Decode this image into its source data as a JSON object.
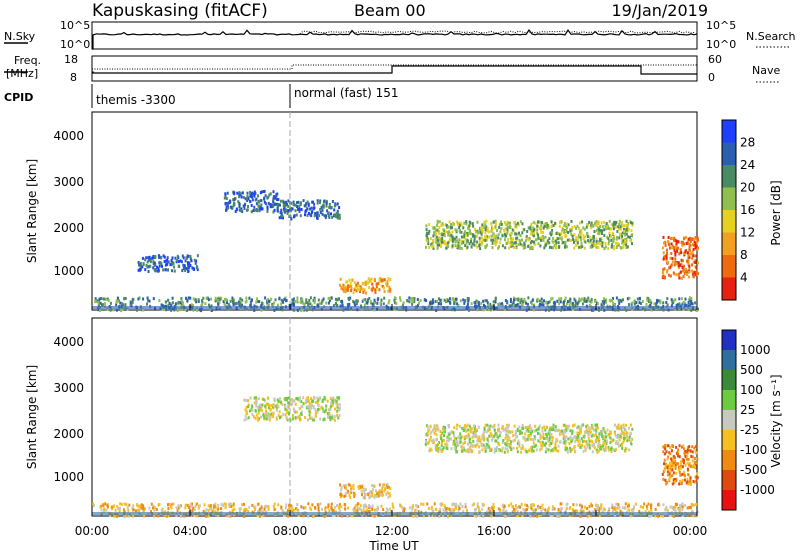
{
  "header": {
    "station": "Kapuskasing (fitACF)",
    "beam": "Beam 00",
    "date": "19/Jan/2019"
  },
  "status_panels": {
    "nsky_label": "N.Sky",
    "nsky_ticks": [
      "10^5",
      "10^0"
    ],
    "nsearch_label": "N.Search",
    "freq_label_line1": "Freq.",
    "freq_label_line2": "[MHz]",
    "freq_ticks": [
      "18",
      "8"
    ],
    "nave_label": "Nave",
    "nave_ticks": [
      "60",
      "0"
    ],
    "cpid_label": "CPID",
    "cpid_modes": [
      "themis -3300",
      "normal (fast) 151"
    ]
  },
  "chart_data": [
    {
      "type": "heatmap",
      "name": "power",
      "ylabel": "Slant Range [km]",
      "yticks": [
        "4000",
        "3000",
        "2000",
        "1000"
      ],
      "ylim": [
        180,
        4500
      ],
      "xlim": [
        0,
        24
      ],
      "colorbar": {
        "label": "Power [dB]",
        "ticks": [
          "28",
          "24",
          "20",
          "16",
          "12",
          "8",
          "4"
        ],
        "colors": [
          "#1f3fff",
          "#2a5fb0",
          "#4a8a60",
          "#8fbf4f",
          "#e8d020",
          "#f2a020",
          "#f06a10",
          "#e82010"
        ]
      },
      "echo_regions": [
        {
          "t_start": 5.2,
          "t_end": 7.4,
          "r_min": 2350,
          "r_max": 2800,
          "level": 1
        },
        {
          "t_start": 7.4,
          "t_end": 9.8,
          "r_min": 2200,
          "r_max": 2600,
          "level": 1
        },
        {
          "t_start": 1.8,
          "t_end": 4.2,
          "r_min": 1050,
          "r_max": 1400,
          "level": 1
        },
        {
          "t_start": 9.8,
          "t_end": 11.8,
          "r_min": 580,
          "r_max": 900,
          "level": 5
        },
        {
          "t_start": 13.2,
          "t_end": 21.4,
          "r_min": 1550,
          "r_max": 2150,
          "level": 3
        },
        {
          "t_start": 22.6,
          "t_end": 24.0,
          "r_min": 900,
          "r_max": 1800,
          "level": 6
        },
        {
          "t_start": 0.0,
          "t_end": 24.0,
          "r_min": 200,
          "r_max": 480,
          "level": 2
        }
      ]
    },
    {
      "type": "heatmap",
      "name": "velocity",
      "ylabel": "Slant Range [km]",
      "yticks": [
        "4000",
        "3000",
        "2000",
        "1000"
      ],
      "ylim": [
        180,
        4500
      ],
      "xlim": [
        0,
        24
      ],
      "xticks": [
        "00:00",
        "04:00",
        "08:00",
        "12:00",
        "16:00",
        "20:00",
        "00:00"
      ],
      "xlabel": "Time UT",
      "colorbar": {
        "label": "Velocity [m s⁻¹]",
        "ticks": [
          "1000",
          "500",
          "100",
          "25",
          "-25",
          "-100",
          "-500",
          "-1000"
        ],
        "colors": [
          "#2030c0",
          "#2f6fa0",
          "#3a8a3a",
          "#6ccc40",
          "#c8c8c0",
          "#f6c020",
          "#f08a10",
          "#e04a10",
          "#e81010"
        ]
      },
      "echo_regions": [
        {
          "t_start": 6.0,
          "t_end": 9.8,
          "r_min": 2300,
          "r_max": 2800,
          "level": 4
        },
        {
          "t_start": 9.8,
          "t_end": 11.8,
          "r_min": 600,
          "r_max": 900,
          "level": 5
        },
        {
          "t_start": 13.2,
          "t_end": 21.4,
          "r_min": 1600,
          "r_max": 2200,
          "level": 4
        },
        {
          "t_start": 22.6,
          "t_end": 24.0,
          "r_min": 900,
          "r_max": 1750,
          "level": 6
        },
        {
          "t_start": 0.0,
          "t_end": 24.0,
          "r_min": 200,
          "r_max": 480,
          "level": 5
        }
      ]
    }
  ]
}
